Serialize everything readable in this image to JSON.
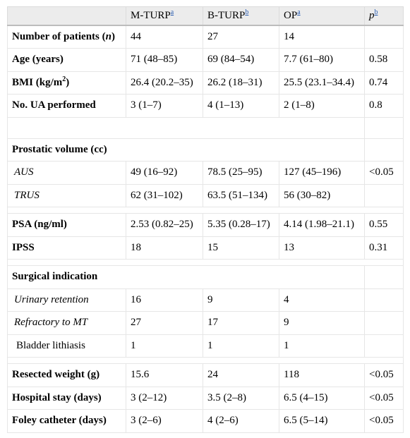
{
  "header": {
    "columns": [
      {
        "label": "",
        "footnote": ""
      },
      {
        "label": "M-TURP",
        "footnote": "a"
      },
      {
        "label": "B-TURP",
        "footnote": "b"
      },
      {
        "label": "OP",
        "footnote": "a"
      },
      {
        "label": "p",
        "footnote": "b"
      }
    ]
  },
  "rows": {
    "patients": {
      "label": "Number of patients (",
      "label_var": "n",
      "label_tail": ")",
      "cells": [
        "44",
        "27",
        "14",
        ""
      ]
    },
    "age": {
      "label": "Age (years)",
      "cells": [
        "71 (48–85)",
        "69 (84–54)",
        "7.7 (61–80)",
        "0.58"
      ]
    },
    "bmi": {
      "label": "BMI (kg/m",
      "label_sup": "2",
      "label_tail": ")",
      "cells": [
        "26.4 (20.2–35)",
        "26.2 (18–31)",
        "25.5 (23.1–34.4)",
        "0.74"
      ]
    },
    "ua": {
      "label": "No. UA performed",
      "cells": [
        "3 (1–7)",
        "4 (1–13)",
        "2 (1–8)",
        "0.8"
      ]
    },
    "prostatic": {
      "label": "Prostatic volume (cc)"
    },
    "aus": {
      "label": "AUS",
      "cells": [
        "49 (16–92)",
        "78.5 (25–95)",
        "127 (45–196)",
        "<0.05"
      ]
    },
    "trus": {
      "label": "TRUS",
      "cells": [
        "62 (31–102)",
        "63.5 (51–134)",
        "56 (30–82)",
        ""
      ]
    },
    "psa": {
      "label": "PSA (ng/ml)",
      "cells": [
        "2.53 (0.82–25)",
        "5.35 (0.28–17)",
        "4.14 (1.98–21.1)",
        "0.55"
      ]
    },
    "ipss": {
      "label": "IPSS",
      "cells": [
        "18",
        "15",
        "13",
        "0.31"
      ]
    },
    "surgical": {
      "label": "Surgical indication"
    },
    "retention": {
      "label": "Urinary retention",
      "cells": [
        "16",
        "9",
        "4",
        ""
      ]
    },
    "refractory": {
      "label": "Refractory to MT",
      "cells": [
        "27",
        "17",
        "9",
        ""
      ]
    },
    "lithiasis": {
      "label": "Bladder lithiasis",
      "cells": [
        "1",
        "1",
        "1",
        ""
      ]
    },
    "resected": {
      "label": "Resected weight (g)",
      "cells": [
        "15.6",
        "24",
        "118",
        "<0.05"
      ]
    },
    "hospital": {
      "label": "Hospital stay (days)",
      "cells": [
        "3 (2–12)",
        "3.5 (2–8)",
        "6.5 (4–15)",
        "<0.05"
      ]
    },
    "foley": {
      "label": "Foley catheter (days)",
      "cells": [
        "3 (2–6)",
        "4 (2–6)",
        "6.5 (5–14)",
        "<0.05"
      ]
    }
  }
}
